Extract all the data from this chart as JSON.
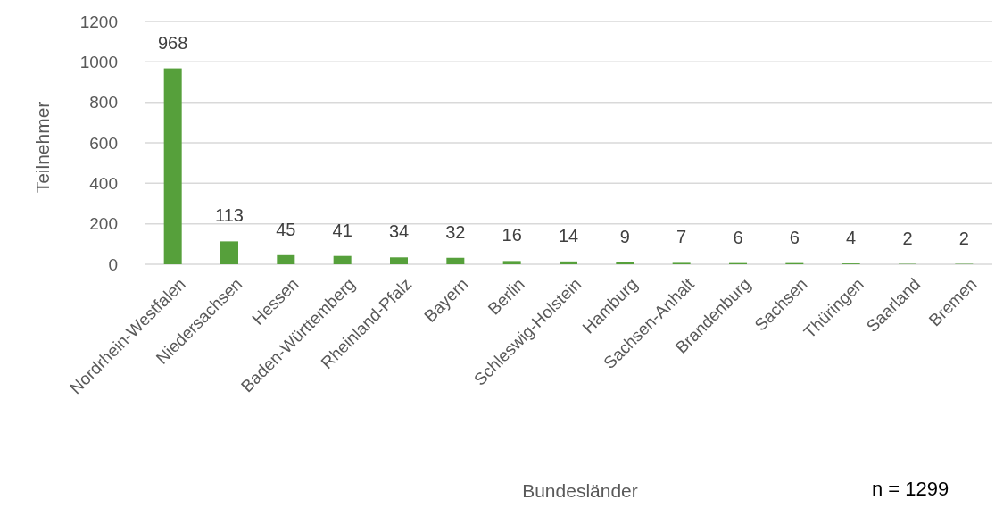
{
  "chart_data": {
    "type": "bar",
    "xlabel": "Bundesländer",
    "ylabel": "Teilnehmer",
    "categories": [
      "Nordrhein-Westfalen",
      "Niedersachsen",
      "Hessen",
      "Baden-Württemberg",
      "Rheinland-Pfalz",
      "Bayern",
      "Berlin",
      "Schleswig-Holstein",
      "Hamburg",
      "Sachsen-Anhalt",
      "Brandenburg",
      "Sachsen",
      "Thüringen",
      "Saarland",
      "Bremen"
    ],
    "values": [
      968,
      113,
      45,
      41,
      34,
      32,
      16,
      14,
      9,
      7,
      6,
      6,
      4,
      2,
      2
    ],
    "color": "#56a03b",
    "ylim": [
      0,
      1200
    ],
    "yticks": [
      0,
      200,
      400,
      600,
      800,
      1000,
      1200
    ],
    "grid": "y",
    "data_labels": true,
    "annotations": [
      "n = 1299"
    ]
  }
}
